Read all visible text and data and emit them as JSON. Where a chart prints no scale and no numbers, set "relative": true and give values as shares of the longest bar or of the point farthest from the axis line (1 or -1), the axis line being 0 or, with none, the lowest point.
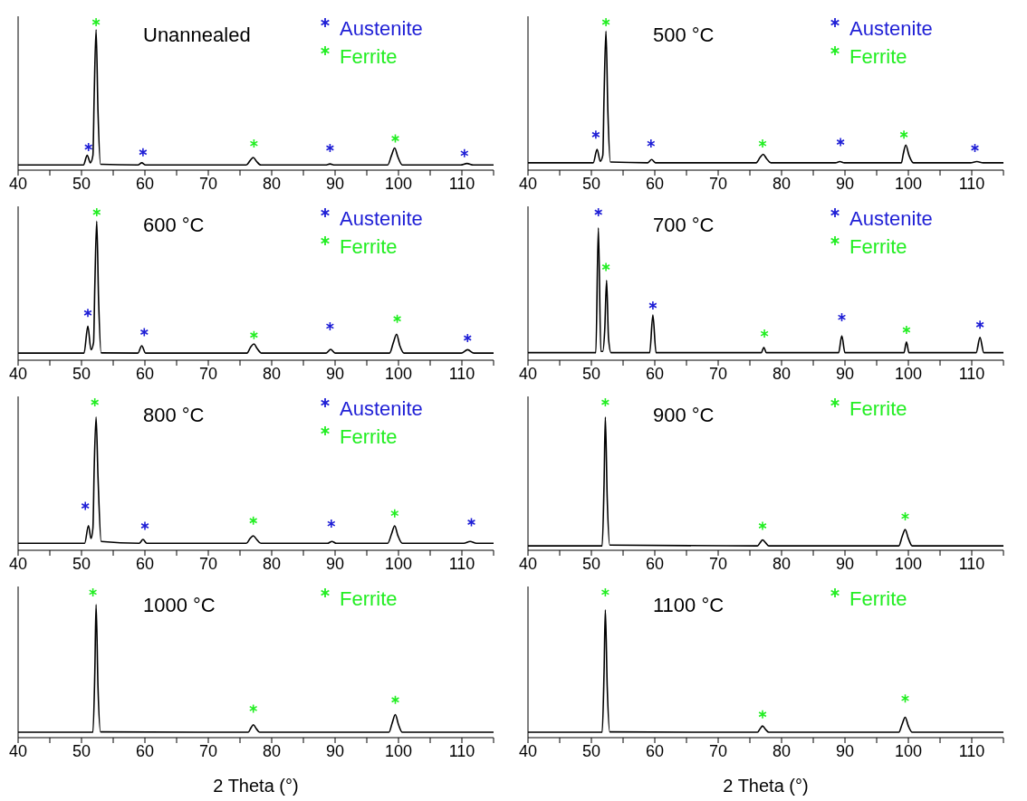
{
  "chart_data": [
    {
      "type": "line",
      "title": "Unannealed",
      "relative": true,
      "legend": "top right",
      "xlim": [
        40,
        115
      ],
      "xticks": [
        40,
        {
          "value": 45,
          "label": null
        },
        50,
        {
          "value": 55,
          "label": null
        },
        60,
        {
          "value": 65,
          "label": null
        },
        70,
        {
          "value": 75,
          "label": null
        },
        80,
        {
          "value": 85,
          "label": null
        },
        90,
        {
          "value": 95,
          "label": null
        },
        100,
        {
          "value": 105,
          "label": null
        },
        110,
        {
          "value": 115,
          "label": null
        }
      ],
      "series": [
        {
          "type": "line",
          "color": "#000000",
          "x": [
            40,
            50.3,
            50.9,
            51.4,
            51.8,
            52.0,
            52.3,
            52.6,
            53.0,
            58.9,
            59.5,
            60.1,
            76.0,
            76.6,
            77.1,
            77.6,
            78.3,
            88.5,
            89.2,
            89.9,
            98.3,
            98.9,
            99.4,
            99.9,
            100.6,
            109.8,
            110.8,
            111.8,
            115
          ],
          "values": [
            0.035,
            0.035,
            0.1,
            0.05,
            0.1,
            0.5,
            0.95,
            0.4,
            0.04,
            0.035,
            0.05,
            0.035,
            0.035,
            0.065,
            0.086,
            0.06,
            0.035,
            0.035,
            0.042,
            0.035,
            0.035,
            0.1,
            0.15,
            0.09,
            0.035,
            0.035,
            0.045,
            0.035,
            0.035
          ]
        },
        {
          "type": "scatter",
          "name": "Austenite",
          "color": "#1f1fd6",
          "marker": "cross",
          "x": [
            51.1,
            59.7,
            89.2,
            110.4
          ],
          "values": [
            0.156,
            0.121,
            0.15,
            0.114
          ]
        },
        {
          "type": "scatter",
          "name": "Ferrite",
          "color": "#22ee22",
          "marker": "cross",
          "x": [
            52.3,
            77.2,
            99.5
          ],
          "values": [
            1,
            0.18,
            0.214
          ]
        }
      ]
    },
    {
      "type": "line",
      "title": "500 °C",
      "relative": true,
      "legend": "top right",
      "xlim": [
        40,
        115
      ],
      "xticks": [
        40,
        {
          "value": 45,
          "label": null
        },
        50,
        {
          "value": 55,
          "label": null
        },
        60,
        {
          "value": 65,
          "label": null
        },
        70,
        {
          "value": 75,
          "label": null
        },
        80,
        {
          "value": 85,
          "label": null
        },
        90,
        {
          "value": 95,
          "label": null
        },
        100,
        {
          "value": 105,
          "label": null
        },
        110,
        {
          "value": 115,
          "label": null
        }
      ],
      "series": [
        {
          "type": "line",
          "color": "#000000",
          "x": [
            40,
            50.3,
            50.9,
            51.4,
            51.8,
            52.0,
            52.3,
            52.6,
            53.0,
            58.9,
            59.5,
            60.1,
            76.0,
            76.6,
            77.1,
            77.6,
            78.3,
            88.5,
            89.2,
            89.9,
            98.9,
            99.2,
            99.6,
            100.1,
            100.8,
            109.8,
            110.8,
            111.8,
            115
          ],
          "values": [
            0.05,
            0.05,
            0.14,
            0.06,
            0.1,
            0.5,
            0.94,
            0.4,
            0.055,
            0.05,
            0.072,
            0.05,
            0.05,
            0.085,
            0.107,
            0.08,
            0.05,
            0.05,
            0.058,
            0.05,
            0.05,
            0.11,
            0.17,
            0.1,
            0.05,
            0.05,
            0.058,
            0.05,
            0.05
          ]
        },
        {
          "type": "scatter",
          "name": "Austenite",
          "color": "#1f1fd6",
          "marker": "cross",
          "x": [
            50.7,
            59.4,
            89.3,
            110.5
          ],
          "values": [
            0.24,
            0.18,
            0.19,
            0.15
          ]
        },
        {
          "type": "scatter",
          "name": "Ferrite",
          "color": "#22ee22",
          "marker": "cross",
          "x": [
            52.3,
            77.0,
            99.3
          ],
          "values": [
            1,
            0.18,
            0.24
          ]
        }
      ]
    },
    {
      "type": "line",
      "title": "600 °C",
      "relative": true,
      "legend": "top right",
      "xlim": [
        40,
        115
      ],
      "xticks": [
        40,
        {
          "value": 45,
          "label": null
        },
        50,
        {
          "value": 55,
          "label": null
        },
        60,
        {
          "value": 65,
          "label": null
        },
        70,
        {
          "value": 75,
          "label": null
        },
        80,
        {
          "value": 85,
          "label": null
        },
        90,
        {
          "value": 95,
          "label": null
        },
        100,
        {
          "value": 105,
          "label": null
        },
        110,
        {
          "value": 115,
          "label": null
        }
      ],
      "series": [
        {
          "type": "line",
          "color": "#000000",
          "x": [
            40,
            50.4,
            51.0,
            51.5,
            51.9,
            52.1,
            52.4,
            52.7,
            53.1,
            58.9,
            59.5,
            60.1,
            76.1,
            76.7,
            77.2,
            77.7,
            78.4,
            88.6,
            89.3,
            90.0,
            98.6,
            99.2,
            99.7,
            100.2,
            100.9,
            109.9,
            110.9,
            111.9,
            115
          ],
          "values": [
            0.048,
            0.048,
            0.23,
            0.07,
            0.12,
            0.5,
            0.94,
            0.4,
            0.05,
            0.048,
            0.098,
            0.048,
            0.048,
            0.09,
            0.11,
            0.08,
            0.048,
            0.048,
            0.073,
            0.048,
            0.048,
            0.12,
            0.176,
            0.1,
            0.048,
            0.048,
            0.071,
            0.048,
            0.048
          ]
        },
        {
          "type": "scatter",
          "name": "Austenite",
          "color": "#1f1fd6",
          "marker": "cross",
          "x": [
            51.0,
            59.9,
            89.2,
            110.9
          ],
          "values": [
            0.32,
            0.19,
            0.23,
            0.15
          ]
        },
        {
          "type": "scatter",
          "name": "Ferrite",
          "color": "#22ee22",
          "marker": "cross",
          "x": [
            52.4,
            77.2,
            99.8
          ],
          "values": [
            1,
            0.17,
            0.28
          ]
        }
      ]
    },
    {
      "type": "line",
      "title": "700 °C",
      "relative": true,
      "legend": "top right",
      "xlim": [
        40,
        115
      ],
      "xticks": [
        40,
        {
          "value": 45,
          "label": null
        },
        50,
        {
          "value": 55,
          "label": null
        },
        60,
        {
          "value": 65,
          "label": null
        },
        70,
        {
          "value": 75,
          "label": null
        },
        80,
        {
          "value": 85,
          "label": null
        },
        90,
        {
          "value": 95,
          "label": null
        },
        100,
        {
          "value": 105,
          "label": null
        },
        110,
        {
          "value": 115,
          "label": null
        }
      ],
      "series": [
        {
          "type": "line",
          "color": "#000000",
          "x": [
            40,
            50.7,
            51.1,
            51.5,
            51.8,
            52.1,
            52.4,
            52.7,
            53.1,
            59.2,
            59.7,
            60.2,
            76.8,
            77.2,
            77.6,
            89.0,
            89.5,
            90.0,
            99.3,
            99.7,
            100.1,
            110.7,
            111.3,
            111.9,
            115
          ],
          "values": [
            0.051,
            0.051,
            0.895,
            0.06,
            0.06,
            0.2,
            0.54,
            0.15,
            0.051,
            0.051,
            0.305,
            0.051,
            0.051,
            0.087,
            0.051,
            0.051,
            0.165,
            0.051,
            0.051,
            0.123,
            0.051,
            0.051,
            0.154,
            0.051,
            0.051
          ]
        },
        {
          "type": "scatter",
          "name": "Austenite",
          "color": "#1f1fd6",
          "marker": "cross",
          "x": [
            51.1,
            59.7,
            89.5,
            111.3
          ],
          "values": [
            1,
            0.37,
            0.29,
            0.24
          ]
        },
        {
          "type": "scatter",
          "name": "Ferrite",
          "color": "#22ee22",
          "marker": "cross",
          "x": [
            52.3,
            77.3,
            99.7
          ],
          "values": [
            0.63,
            0.18,
            0.205
          ]
        }
      ]
    },
    {
      "type": "line",
      "title": "800 °C",
      "relative": true,
      "legend": "top right",
      "xlim": [
        40,
        115
      ],
      "xticks": [
        40,
        {
          "value": 45,
          "label": null
        },
        50,
        {
          "value": 55,
          "label": null
        },
        60,
        {
          "value": 65,
          "label": null
        },
        70,
        {
          "value": 75,
          "label": null
        },
        80,
        {
          "value": 85,
          "label": null
        },
        90,
        {
          "value": 95,
          "label": null
        },
        100,
        {
          "value": 105,
          "label": null
        },
        110,
        {
          "value": 115,
          "label": null
        }
      ],
      "series": [
        {
          "type": "line",
          "color": "#000000",
          "x": [
            40,
            50.5,
            51.1,
            51.5,
            51.8,
            52.0,
            52.3,
            52.6,
            53.1,
            59.1,
            59.7,
            60.3,
            76.0,
            76.6,
            77.1,
            77.6,
            78.3,
            88.8,
            89.5,
            90.2,
            98.3,
            98.9,
            99.4,
            99.9,
            100.6,
            110.3,
            111.3,
            112.3,
            115
          ],
          "values": [
            0.047,
            0.047,
            0.167,
            0.08,
            0.15,
            0.55,
            0.9,
            0.5,
            0.06,
            0.047,
            0.073,
            0.047,
            0.047,
            0.08,
            0.098,
            0.075,
            0.047,
            0.047,
            0.06,
            0.047,
            0.047,
            0.11,
            0.165,
            0.1,
            0.047,
            0.047,
            0.06,
            0.047,
            0.047
          ]
        },
        {
          "type": "scatter",
          "name": "Austenite",
          "color": "#1f1fd6",
          "marker": "cross",
          "x": [
            50.6,
            60.0,
            89.4,
            111.5
          ],
          "values": [
            0.3,
            0.165,
            0.18,
            0.19
          ]
        },
        {
          "type": "scatter",
          "name": "Ferrite",
          "color": "#22ee22",
          "marker": "cross",
          "x": [
            52.1,
            77.1,
            99.4
          ],
          "values": [
            1,
            0.2,
            0.25
          ]
        }
      ]
    },
    {
      "type": "line",
      "title": "900 °C",
      "relative": true,
      "legend": "top right",
      "xlim": [
        40,
        115
      ],
      "xticks": [
        40,
        {
          "value": 45,
          "label": null
        },
        50,
        {
          "value": 55,
          "label": null
        },
        60,
        {
          "value": 65,
          "label": null
        },
        70,
        {
          "value": 75,
          "label": null
        },
        80,
        {
          "value": 85,
          "label": null
        },
        90,
        {
          "value": 95,
          "label": null
        },
        100,
        {
          "value": 105,
          "label": null
        },
        110,
        {
          "value": 115,
          "label": null
        }
      ],
      "series": [
        {
          "type": "line",
          "color": "#000000",
          "x": [
            40,
            51.7,
            52.0,
            52.2,
            52.5,
            52.9,
            76.2,
            76.6,
            77.0,
            77.5,
            78.0,
            98.5,
            99.0,
            99.5,
            100.0,
            100.6,
            115
          ],
          "values": [
            0.03,
            0.03,
            0.45,
            0.9,
            0.35,
            0.035,
            0.03,
            0.05,
            0.07,
            0.05,
            0.03,
            0.03,
            0.09,
            0.14,
            0.08,
            0.03,
            0.03
          ]
        },
        {
          "type": "scatter",
          "name": "Ferrite",
          "color": "#22ee22",
          "marker": "cross",
          "x": [
            52.2,
            77.0,
            99.5
          ],
          "values": [
            1,
            0.165,
            0.23
          ]
        }
      ]
    },
    {
      "type": "line",
      "title": "1000 °C",
      "xlabel": "2 Theta (°)",
      "relative": true,
      "legend": "top right",
      "xlim": [
        40,
        115
      ],
      "xticks": [
        40,
        {
          "value": 45,
          "label": null
        },
        50,
        {
          "value": 55,
          "label": null
        },
        60,
        {
          "value": 65,
          "label": null
        },
        70,
        {
          "value": 75,
          "label": null
        },
        80,
        {
          "value": 85,
          "label": null
        },
        90,
        {
          "value": 95,
          "label": null
        },
        100,
        {
          "value": 105,
          "label": null
        },
        110,
        {
          "value": 115,
          "label": null
        }
      ],
      "series": [
        {
          "type": "line",
          "color": "#000000",
          "x": [
            40,
            51.8,
            52.1,
            52.3,
            52.6,
            53.0,
            76.3,
            76.7,
            77.1,
            77.6,
            78.1,
            98.5,
            99.0,
            99.5,
            100.0,
            100.6,
            115
          ],
          "values": [
            0.037,
            0.037,
            0.45,
            0.916,
            0.35,
            0.04,
            0.037,
            0.065,
            0.089,
            0.06,
            0.037,
            0.037,
            0.1,
            0.159,
            0.09,
            0.037,
            0.037
          ]
        },
        {
          "type": "scatter",
          "name": "Ferrite",
          "color": "#22ee22",
          "marker": "cross",
          "x": [
            51.8,
            77.1,
            99.5
          ],
          "values": [
            1,
            0.2,
            0.26
          ]
        }
      ]
    },
    {
      "type": "line",
      "title": "1100 °C",
      "xlabel": "2 Theta (°)",
      "relative": true,
      "legend": "top right",
      "xlim": [
        40,
        115
      ],
      "xticks": [
        40,
        {
          "value": 45,
          "label": null
        },
        50,
        {
          "value": 55,
          "label": null
        },
        60,
        {
          "value": 65,
          "label": null
        },
        70,
        {
          "value": 75,
          "label": null
        },
        80,
        {
          "value": 85,
          "label": null
        },
        90,
        {
          "value": 95,
          "label": null
        },
        100,
        {
          "value": 105,
          "label": null
        },
        110,
        {
          "value": 115,
          "label": null
        }
      ],
      "series": [
        {
          "type": "line",
          "color": "#000000",
          "x": [
            40,
            51.7,
            52.0,
            52.2,
            52.5,
            52.9,
            76.2,
            76.6,
            77.0,
            77.5,
            78.0,
            98.5,
            99.0,
            99.5,
            100.0,
            100.6,
            115
          ],
          "values": [
            0.037,
            0.037,
            0.45,
            0.88,
            0.35,
            0.04,
            0.037,
            0.06,
            0.08,
            0.055,
            0.037,
            0.037,
            0.09,
            0.14,
            0.08,
            0.037,
            0.037
          ]
        },
        {
          "type": "scatter",
          "name": "Ferrite",
          "color": "#22ee22",
          "marker": "cross",
          "x": [
            52.2,
            77.0,
            99.5
          ],
          "values": [
            1,
            0.16,
            0.27
          ]
        }
      ]
    }
  ]
}
